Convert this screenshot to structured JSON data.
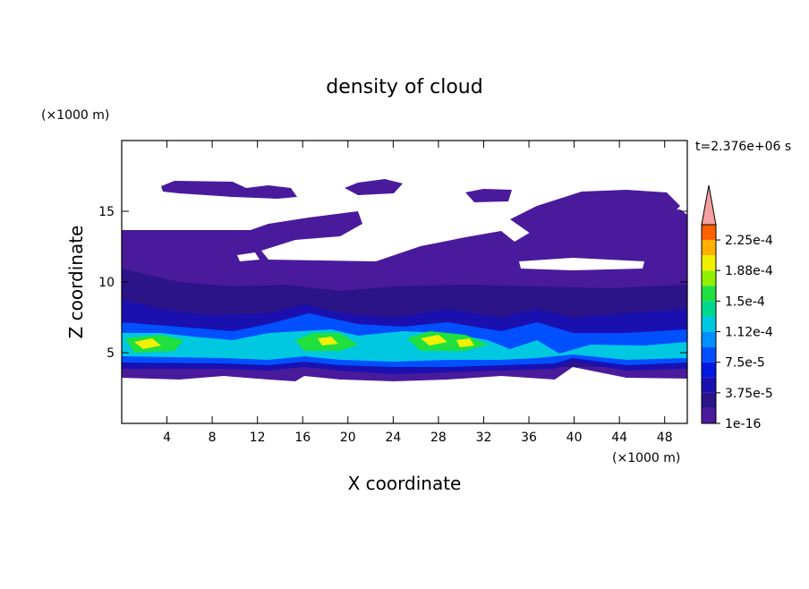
{
  "chart_data": {
    "type": "contour",
    "title": "density of cloud",
    "x_label": "X coordinate",
    "y_label": "Z coordinate",
    "x_unit": "(×1000 m)",
    "y_unit": "(×1000 m)",
    "time_label": "t=2.376e+06 s",
    "xlim": [
      0,
      50
    ],
    "ylim": [
      0,
      20
    ],
    "xticks": [
      4,
      8,
      12,
      16,
      20,
      24,
      28,
      32,
      36,
      40,
      44,
      48
    ],
    "yticks": [
      5,
      10,
      15
    ],
    "colorbar": {
      "clim": [
        1e-16,
        0.00024375
      ],
      "ticks": [
        1e-16,
        {
          "value": 3.75e-05,
          "label": "3.75e-5"
        },
        {
          "value": 7.5e-05,
          "label": "7.5e-5"
        },
        {
          "value": 0.0001125,
          "label": "1.12e-4"
        },
        {
          "value": 0.00015,
          "label": "1.5e-4"
        },
        {
          "value": 0.0001875,
          "label": "1.88e-4"
        },
        {
          "value": 0.000225,
          "label": "2.25e-4"
        }
      ],
      "colors": [
        "#4a1a9c",
        "#2a1488",
        "#1a10b0",
        "#0018e0",
        "#0050ff",
        "#0090ff",
        "#00c8e0",
        "#00d890",
        "#20e040",
        "#90f000",
        "#f0f000",
        "#ffb000",
        "#ff6000"
      ],
      "extend_color": "#f4a0a0"
    }
  }
}
